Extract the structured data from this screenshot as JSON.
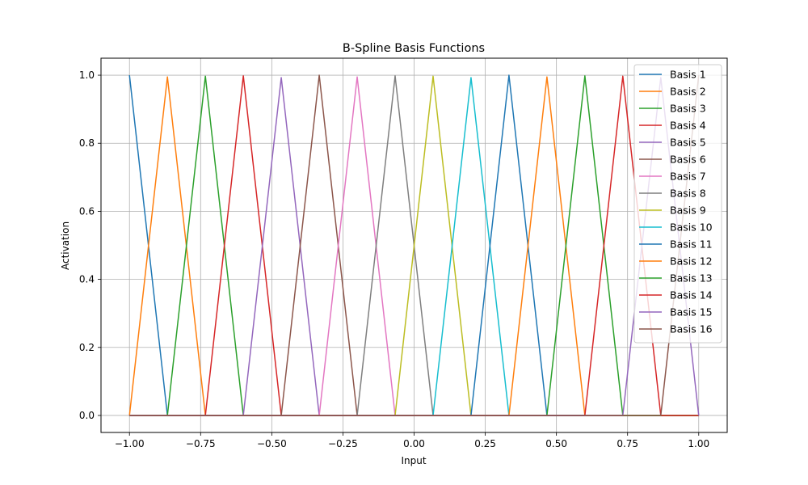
{
  "chart_data": {
    "type": "line",
    "title": "B-Spline Basis Functions",
    "xlabel": "Input",
    "ylabel": "Activation",
    "xlim": [
      -1.1,
      1.1
    ],
    "ylim": [
      -0.05,
      1.05
    ],
    "grid": true,
    "legend_placement": "top-right",
    "x_ticks": [
      -1.0,
      -0.75,
      -0.5,
      -0.25,
      0.0,
      0.25,
      0.5,
      0.75,
      1.0
    ],
    "x_tick_labels": [
      "−1.00",
      "−0.75",
      "−0.50",
      "−0.25",
      "0.00",
      "0.25",
      "0.50",
      "0.75",
      "1.00"
    ],
    "y_ticks": [
      0.0,
      0.2,
      0.4,
      0.6,
      0.8,
      1.0
    ],
    "y_tick_labels": [
      "0.0",
      "0.2",
      "0.4",
      "0.6",
      "0.8",
      "1.0"
    ],
    "series": [
      {
        "name": "Basis 1",
        "color": "#1f77b4",
        "x": [
          -1.0,
          -0.8667,
          1.0
        ],
        "y": [
          1.0,
          0.0,
          0.0
        ]
      },
      {
        "name": "Basis 2",
        "color": "#ff7f0e",
        "x": [
          -1.0,
          -0.8667,
          -0.7333,
          1.0
        ],
        "y": [
          0.0,
          0.995,
          0.0,
          0.0
        ]
      },
      {
        "name": "Basis 3",
        "color": "#2ca02c",
        "x": [
          -1.0,
          -0.8667,
          -0.7333,
          -0.6,
          1.0
        ],
        "y": [
          0.0,
          0.0,
          0.997,
          0.0,
          0.0
        ]
      },
      {
        "name": "Basis 4",
        "color": "#d62728",
        "x": [
          -1.0,
          -0.7333,
          -0.6,
          -0.4667,
          1.0
        ],
        "y": [
          0.0,
          0.0,
          0.998,
          0.0,
          0.0
        ]
      },
      {
        "name": "Basis 5",
        "color": "#9467bd",
        "x": [
          -1.0,
          -0.6,
          -0.4667,
          -0.3333,
          1.0
        ],
        "y": [
          0.0,
          0.0,
          0.993,
          0.0,
          0.0
        ]
      },
      {
        "name": "Basis 6",
        "color": "#8c564b",
        "x": [
          -1.0,
          -0.4667,
          -0.3333,
          -0.2,
          1.0
        ],
        "y": [
          0.0,
          0.0,
          1.0,
          0.0,
          0.0
        ]
      },
      {
        "name": "Basis 7",
        "color": "#e377c2",
        "x": [
          -1.0,
          -0.3333,
          -0.2,
          -0.0667,
          1.0
        ],
        "y": [
          0.0,
          0.0,
          0.995,
          0.0,
          0.0
        ]
      },
      {
        "name": "Basis 8",
        "color": "#7f7f7f",
        "x": [
          -1.0,
          -0.2,
          -0.0667,
          0.0667,
          1.0
        ],
        "y": [
          0.0,
          0.0,
          0.998,
          0.0,
          0.0
        ]
      },
      {
        "name": "Basis 9",
        "color": "#bcbd22",
        "x": [
          -1.0,
          -0.0667,
          0.0667,
          0.2,
          1.0
        ],
        "y": [
          0.0,
          0.0,
          0.997,
          0.0,
          0.0
        ]
      },
      {
        "name": "Basis 10",
        "color": "#17becf",
        "x": [
          -1.0,
          0.0667,
          0.2,
          0.3333,
          1.0
        ],
        "y": [
          0.0,
          0.0,
          0.993,
          0.0,
          0.0
        ]
      },
      {
        "name": "Basis 11",
        "color": "#1f77b4",
        "x": [
          -1.0,
          0.2,
          0.3333,
          0.4667,
          1.0
        ],
        "y": [
          0.0,
          0.0,
          1.0,
          0.0,
          0.0
        ]
      },
      {
        "name": "Basis 12",
        "color": "#ff7f0e",
        "x": [
          -1.0,
          0.3333,
          0.4667,
          0.6,
          1.0
        ],
        "y": [
          0.0,
          0.0,
          0.995,
          0.0,
          0.0
        ]
      },
      {
        "name": "Basis 13",
        "color": "#2ca02c",
        "x": [
          -1.0,
          0.4667,
          0.6,
          0.7333,
          1.0
        ],
        "y": [
          0.0,
          0.0,
          0.998,
          0.0,
          0.0
        ]
      },
      {
        "name": "Basis 14",
        "color": "#d62728",
        "x": [
          -1.0,
          0.6,
          0.7333,
          0.8667,
          1.0
        ],
        "y": [
          0.0,
          0.0,
          0.997,
          0.0,
          0.0
        ]
      },
      {
        "name": "Basis 15",
        "color": "#9467bd",
        "x": [
          -1.0,
          0.7333,
          0.8667,
          1.0
        ],
        "y": [
          0.0,
          0.0,
          0.993,
          0.0
        ]
      },
      {
        "name": "Basis 16",
        "color": "#8c564b",
        "x": [
          -1.0,
          0.8667,
          1.0
        ],
        "y": [
          0.0,
          0.0,
          1.0
        ]
      }
    ]
  }
}
